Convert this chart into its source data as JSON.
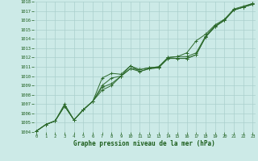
{
  "x": [
    0,
    1,
    2,
    3,
    4,
    5,
    6,
    7,
    8,
    9,
    10,
    11,
    12,
    13,
    14,
    15,
    16,
    17,
    18,
    19,
    20,
    21,
    22,
    23
  ],
  "line1": [
    1004.1,
    1004.8,
    1005.2,
    1006.8,
    1005.3,
    1006.4,
    1007.3,
    1009.8,
    1010.3,
    1010.2,
    1011.1,
    1010.7,
    1010.9,
    1011.0,
    1012.0,
    1012.1,
    1012.5,
    1013.8,
    1014.5,
    1015.5,
    1016.1,
    1017.2,
    1017.5,
    1017.8
  ],
  "line2": [
    1004.1,
    1004.8,
    1005.2,
    1006.8,
    1005.3,
    1006.4,
    1007.3,
    1008.8,
    1009.2,
    1010.0,
    1010.8,
    1010.7,
    1010.9,
    1011.0,
    1012.0,
    1012.1,
    1012.1,
    1012.5,
    1014.3,
    1015.4,
    1016.0,
    1017.1,
    1017.4,
    1017.8
  ],
  "line3": [
    1004.1,
    1004.8,
    1005.2,
    1006.8,
    1005.3,
    1006.4,
    1007.3,
    1008.5,
    1009.0,
    1010.0,
    1010.8,
    1010.5,
    1010.8,
    1010.9,
    1011.9,
    1011.9,
    1011.9,
    1012.3,
    1014.2,
    1015.3,
    1016.0,
    1017.1,
    1017.4,
    1017.7
  ],
  "line4": [
    1004.1,
    1004.8,
    1005.2,
    1007.0,
    1005.3,
    1006.4,
    1007.3,
    1009.0,
    1009.8,
    1010.0,
    1011.1,
    1010.5,
    1010.8,
    1010.9,
    1011.9,
    1011.9,
    1011.9,
    1012.3,
    1014.2,
    1015.3,
    1016.0,
    1017.1,
    1017.4,
    1017.7
  ],
  "ylim": [
    1004,
    1018
  ],
  "yticks": [
    1004,
    1005,
    1006,
    1007,
    1008,
    1009,
    1010,
    1011,
    1012,
    1013,
    1014,
    1015,
    1016,
    1017,
    1018
  ],
  "xticks": [
    0,
    1,
    2,
    3,
    4,
    5,
    6,
    7,
    8,
    9,
    10,
    11,
    12,
    13,
    14,
    15,
    16,
    17,
    18,
    19,
    20,
    21,
    22,
    23
  ],
  "xlabel": "Graphe pression niveau de la mer (hPa)",
  "line_color": "#2d6a2d",
  "bg_color": "#cceae7",
  "grid_color": "#aacfcc",
  "tick_color": "#1a5c1a",
  "label_color": "#1a5c1a",
  "marker": "+",
  "markersize": 3,
  "linewidth": 0.7,
  "tick_fontsize": 4.0,
  "label_fontsize": 5.5
}
